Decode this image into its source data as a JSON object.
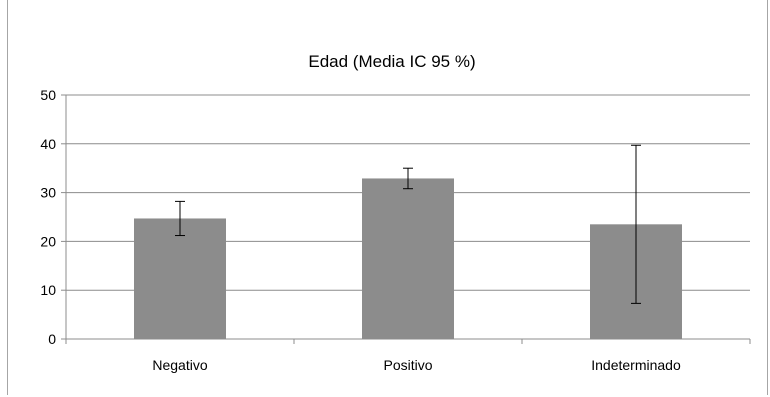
{
  "chart_data": {
    "type": "bar",
    "title": "Edad (Media IC 95 %)",
    "xlabel": "",
    "ylabel": "",
    "categories": [
      "Negativo",
      "Positivo",
      "Indeterminado"
    ],
    "series": [
      {
        "values": [
          24.7,
          32.9,
          23.5
        ],
        "error_low": [
          21.2,
          30.8,
          7.3
        ],
        "error_high": [
          28.2,
          35.0,
          39.7
        ]
      }
    ],
    "ylim": [
      0,
      50
    ],
    "yticks": [
      "0",
      "10",
      "20",
      "30",
      "40",
      "50"
    ],
    "grid": true,
    "legend": "none",
    "colors": {
      "bar": "#8c8c8c",
      "grid": "#8c8c8c",
      "axis": "#8c8c8c",
      "error_bar": "#000000"
    }
  }
}
